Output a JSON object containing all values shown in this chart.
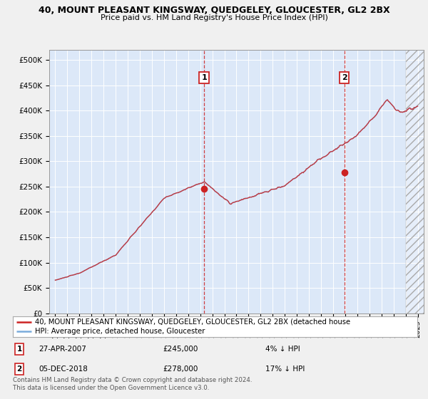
{
  "title": "40, MOUNT PLEASANT KINGSWAY, QUEDGELEY, GLOUCESTER, GL2 2BX",
  "subtitle": "Price paid vs. HM Land Registry's House Price Index (HPI)",
  "hpi_color": "#7aacdc",
  "price_color": "#cc2222",
  "background_color": "#f0f0f0",
  "plot_bg": "#dce8f8",
  "annotation1": {
    "label": "1",
    "date_num": 2007.32,
    "price": 245000,
    "text": "27-APR-2007",
    "amount": "£245,000",
    "pct": "4% ↓ HPI"
  },
  "annotation2": {
    "label": "2",
    "date_num": 2018.92,
    "price": 278000,
    "text": "05-DEC-2018",
    "amount": "£278,000",
    "pct": "17% ↓ HPI"
  },
  "yticks": [
    0,
    50000,
    100000,
    150000,
    200000,
    250000,
    300000,
    350000,
    400000,
    450000,
    500000
  ],
  "ytick_labels": [
    "£0",
    "£50K",
    "£100K",
    "£150K",
    "£200K",
    "£250K",
    "£300K",
    "£350K",
    "£400K",
    "£450K",
    "£500K"
  ],
  "legend_line1": "40, MOUNT PLEASANT KINGSWAY, QUEDGELEY, GLOUCESTER, GL2 2BX (detached house",
  "legend_line2": "HPI: Average price, detached house, Gloucester",
  "footer1": "Contains HM Land Registry data © Crown copyright and database right 2024.",
  "footer2": "This data is licensed under the Open Government Licence v3.0.",
  "xlim": [
    1994.5,
    2025.5
  ],
  "ylim": [
    0,
    520000
  ],
  "hatch_start": 2024.0,
  "sale1_year": 2007.32,
  "sale1_price": 245000,
  "sale2_year": 2018.92,
  "sale2_price": 278000
}
